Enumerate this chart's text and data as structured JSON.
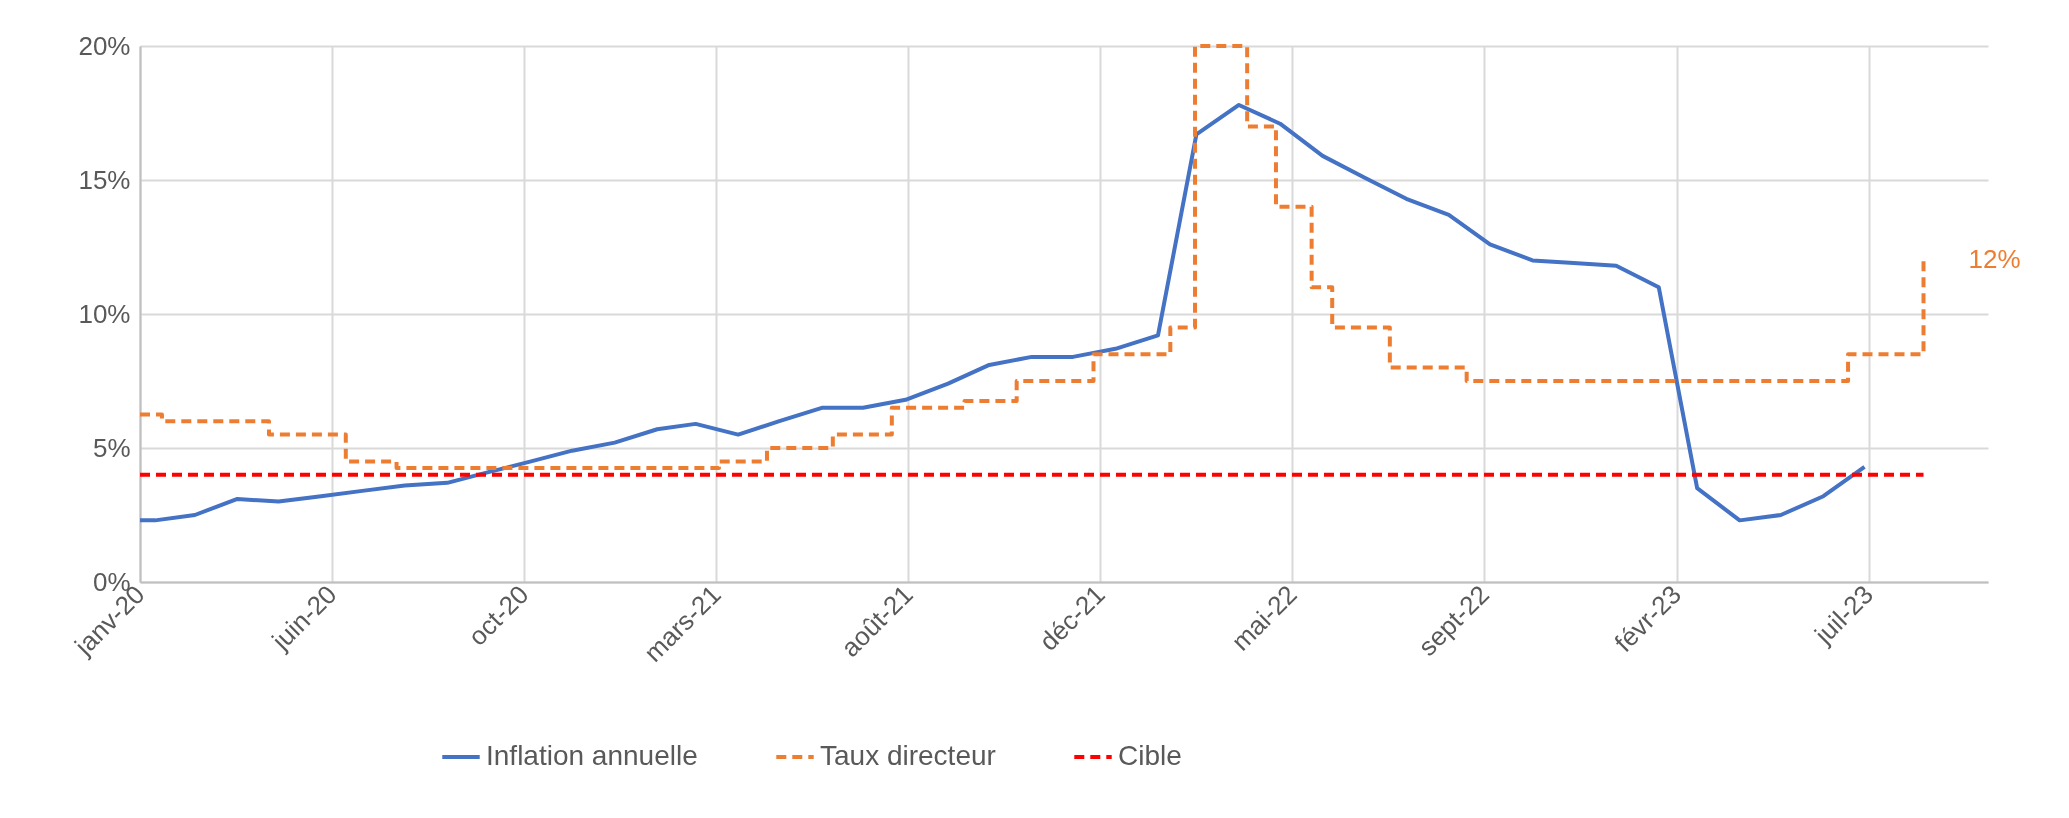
{
  "chart_data": {
    "type": "line",
    "xlim": [
      "2020-01-20",
      "2023-09-28"
    ],
    "xticks": [
      {
        "value": "2020-01-20",
        "label": "janv-20"
      },
      {
        "value": "2020-06-08",
        "label": "juin-20"
      },
      {
        "value": "2020-10-26",
        "label": "oct-20"
      },
      {
        "value": "2021-03-15",
        "label": "mars-21"
      },
      {
        "value": "2021-08-02",
        "label": "août-21"
      },
      {
        "value": "2021-12-20",
        "label": "déc-21"
      },
      {
        "value": "2022-05-09",
        "label": "mai-22"
      },
      {
        "value": "2022-09-26",
        "label": "sept-22"
      },
      {
        "value": "2023-02-13",
        "label": "févr-23"
      },
      {
        "value": "2023-07-03",
        "label": "juil-23"
      }
    ],
    "ylim": [
      0,
      20
    ],
    "yticks": [
      {
        "value": 0,
        "label": "0%"
      },
      {
        "value": 5,
        "label": "5%"
      },
      {
        "value": 10,
        "label": "10%"
      },
      {
        "value": 15,
        "label": "15%"
      },
      {
        "value": 20,
        "label": "20%"
      }
    ],
    "grid": true,
    "legend": "bottom",
    "series": [
      {
        "name": "Inflation annuelle",
        "type": "line",
        "color": "#4472c4",
        "line_style": "solid",
        "x": [
          "2020-01-20",
          "2020-01-31",
          "2020-02-29",
          "2020-03-31",
          "2020-04-30",
          "2020-05-31",
          "2020-06-30",
          "2020-07-31",
          "2020-08-31",
          "2020-09-30",
          "2020-10-31",
          "2020-11-30",
          "2020-12-31",
          "2021-01-31",
          "2021-02-28",
          "2021-03-31",
          "2021-04-30",
          "2021-05-31",
          "2021-06-30",
          "2021-07-31",
          "2021-08-31",
          "2021-09-30",
          "2021-10-31",
          "2021-11-30",
          "2021-12-31",
          "2022-01-31",
          "2022-02-28",
          "2022-03-31",
          "2022-04-30",
          "2022-05-31",
          "2022-06-30",
          "2022-07-31",
          "2022-08-31",
          "2022-09-30",
          "2022-10-31",
          "2022-11-30",
          "2022-12-31",
          "2023-01-31",
          "2023-02-28",
          "2023-03-31",
          "2023-04-30",
          "2023-05-31",
          "2023-06-30"
        ],
        "values": [
          2.3,
          2.3,
          2.5,
          3.1,
          3.0,
          3.2,
          3.4,
          3.6,
          3.7,
          4.1,
          4.5,
          4.9,
          5.2,
          5.7,
          5.9,
          5.5,
          6.0,
          6.5,
          6.5,
          6.8,
          7.4,
          8.1,
          8.4,
          8.4,
          8.7,
          9.2,
          16.7,
          17.8,
          17.1,
          15.9,
          15.1,
          14.3,
          13.7,
          12.6,
          12.0,
          11.9,
          11.8,
          11.0,
          3.5,
          2.3,
          2.5,
          3.2,
          4.3
        ]
      },
      {
        "name": "Taux directeur",
        "type": "step",
        "color": "#ed7d31",
        "line_style": "dashed",
        "x": [
          "2020-01-20",
          "2020-02-05",
          "2020-04-23",
          "2020-06-18",
          "2020-07-25",
          "2021-03-17",
          "2021-04-21",
          "2021-06-08",
          "2021-07-21",
          "2021-09-12",
          "2021-10-20",
          "2021-12-15",
          "2022-02-09",
          "2022-02-27",
          "2022-04-06",
          "2022-04-27",
          "2022-05-23",
          "2022-06-07",
          "2022-07-19",
          "2022-09-13",
          "2023-06-18",
          "2023-08-12"
        ],
        "values": [
          6.25,
          6.0,
          5.5,
          4.5,
          4.25,
          4.5,
          5.0,
          5.5,
          6.5,
          6.75,
          7.5,
          8.5,
          9.5,
          20,
          17,
          14,
          11,
          9.5,
          8.0,
          7.5,
          8.5,
          12
        ]
      },
      {
        "name": "Cible",
        "type": "line",
        "color": "#ff0000",
        "line_style": "dashed",
        "x": [
          "2020-01-20",
          "2023-08-12"
        ],
        "values": [
          4,
          4
        ]
      }
    ],
    "annotations": [
      {
        "text": "12%",
        "x": "2023-08-12",
        "y": 12
      }
    ]
  }
}
